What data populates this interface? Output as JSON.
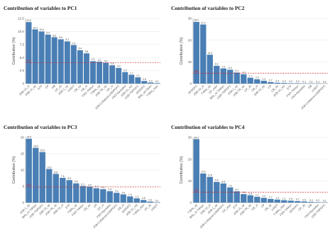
{
  "chart_data": [
    {
      "type": "bar",
      "title": "Contribution of variables to PC1",
      "ylabel": "Contribution (%)",
      "xlabel": "",
      "ylim": [
        0,
        12.5
      ],
      "yticks": [
        0,
        2.5,
        5.0,
        7.5,
        10.0,
        12.5
      ],
      "yticklabels": [
        "0",
        "2.5",
        "5.0",
        "7.5",
        "10.0",
        "12.5"
      ],
      "reference_line": 4.0,
      "reference_label": "4.0",
      "bar_color": "#4a7fb5",
      "ref_color": "#d62728",
      "grid": true,
      "categories": [
        "JGB-10_re",
        "JGB-10_op",
        "ETF",
        "CP",
        "GB",
        "CP_Jp",
        "JGB-1_op",
        "J-REIT",
        "CB_op",
        "CB_re",
        "FSO-Tokkyo",
        "T-Bills_op",
        "JGB-TR_op",
        "CP_re",
        "JGB-Collateral-USDPGFC",
        "FSO-Nyusatsu",
        "JGB-10_re2",
        "USD-TDPGFC",
        "SFDOFC",
        "Bills_op-Open",
        "T-Bills_repo"
      ],
      "values": [
        11.8,
        10.4,
        10.0,
        9.4,
        8.9,
        8.5,
        8.1,
        7.4,
        6.4,
        5.8,
        4.3,
        4.2,
        4.0,
        3.5,
        3.0,
        2.2,
        1.7,
        1.2,
        0.5,
        0.2,
        0.1
      ]
    },
    {
      "type": "bar",
      "title": "Contribution of variables to PC2",
      "ylabel": "Contribution (%)",
      "xlabel": "",
      "ylim": [
        0,
        30
      ],
      "yticks": [
        0,
        10,
        20,
        30
      ],
      "yticklabels": [
        "0",
        "10",
        "20",
        "30"
      ],
      "reference_line": 4.8,
      "reference_label": "4.8",
      "bar_color": "#4a7fb5",
      "ref_color": "#d62728",
      "grid": true,
      "categories": [
        "SFDOFC",
        "JGB-10_re",
        "T-Bills_op",
        "CP_repo",
        "Bills_re-Tokkyo",
        "USD-TDPGFC",
        "JGB-1_op",
        "JGB-TR_op",
        "CP_Jp",
        "CB_re",
        "JGB-10_op",
        "CP",
        "CB_op",
        "JGB-10_re2",
        "ETF",
        "FSO-Tokkyo",
        "FSO-Nyusatsu",
        "GB",
        "J-REIT",
        "JGB-Collateral-USDPGFC"
      ],
      "values": [
        28.4,
        27.2,
        13.3,
        8.2,
        7.0,
        6.4,
        5.1,
        4.3,
        2.7,
        2.0,
        1.3,
        0.7,
        0.4,
        0.3,
        0.2,
        0.2,
        0.1,
        0.1,
        0.1,
        0.0
      ]
    },
    {
      "type": "bar",
      "title": "Contribution of variables to PC3",
      "ylabel": "Contribution (%)",
      "xlabel": "",
      "ylim": [
        0,
        20
      ],
      "yticks": [
        0,
        5,
        10,
        15,
        20
      ],
      "yticklabels": [
        "0",
        "5",
        "10",
        "15",
        "20"
      ],
      "reference_line": 4.8,
      "reference_label": "4.8",
      "bar_color": "#4a7fb5",
      "ref_color": "#d62728",
      "grid": true,
      "categories": [
        "JGB-1_op",
        "Bills_re-Tokkyo",
        "USD-TDPGFC",
        "JGB-10_op",
        "JGB-TR_op",
        "JGB-10_re",
        "ETF",
        "T-Bills_op",
        "FSO-Tokkyo",
        "CB_op",
        "CP",
        "CP_re",
        "FSO-Nyusatsu",
        "JGB-Collateral-USDPGFC",
        "CB_re",
        "SFDOFC",
        "JGB-10_re2",
        "T-Bills_repo",
        "CP_Jp",
        "J-REIT"
      ],
      "values": [
        19.6,
        16.8,
        15.5,
        10.3,
        8.8,
        7.6,
        6.9,
        5.9,
        5.1,
        4.9,
        4.4,
        4.1,
        3.5,
        3.0,
        2.5,
        1.9,
        1.3,
        0.8,
        0.3,
        0.1
      ]
    },
    {
      "type": "bar",
      "title": "Contribution of variables to PC4",
      "ylabel": "Contribution (%)",
      "xlabel": "",
      "ylim": [
        0,
        30
      ],
      "yticks": [
        0,
        10,
        20,
        30
      ],
      "yticklabels": [
        "0",
        "10",
        "20",
        "30"
      ],
      "reference_line": 4.8,
      "reference_label": "4.8",
      "bar_color": "#4a7fb5",
      "ref_color": "#d62728",
      "grid": true,
      "categories": [
        "T-Bills_op",
        "Bills_re-Tokkyo",
        "JGB-10_re",
        "JGB-1_op",
        "JGB-Collateral-USDPGFC",
        "CP_repo",
        "ETF",
        "JGB-10_op",
        "JGB-TR_op",
        "CB_re",
        "CP",
        "CB_op",
        "J-REIT",
        "T-Bills_repo",
        "FSO-Tokkyo",
        "SFDOFC",
        "CP_Jp",
        "GB",
        "FSO-Nyusatsu",
        "USD-TDPGFC"
      ],
      "values": [
        29.2,
        13.4,
        11.8,
        9.5,
        8.8,
        7.0,
        5.2,
        3.9,
        3.4,
        2.7,
        2.2,
        1.7,
        1.4,
        1.1,
        0.9,
        0.7,
        0.5,
        0.3,
        0.2,
        0.1
      ]
    }
  ]
}
